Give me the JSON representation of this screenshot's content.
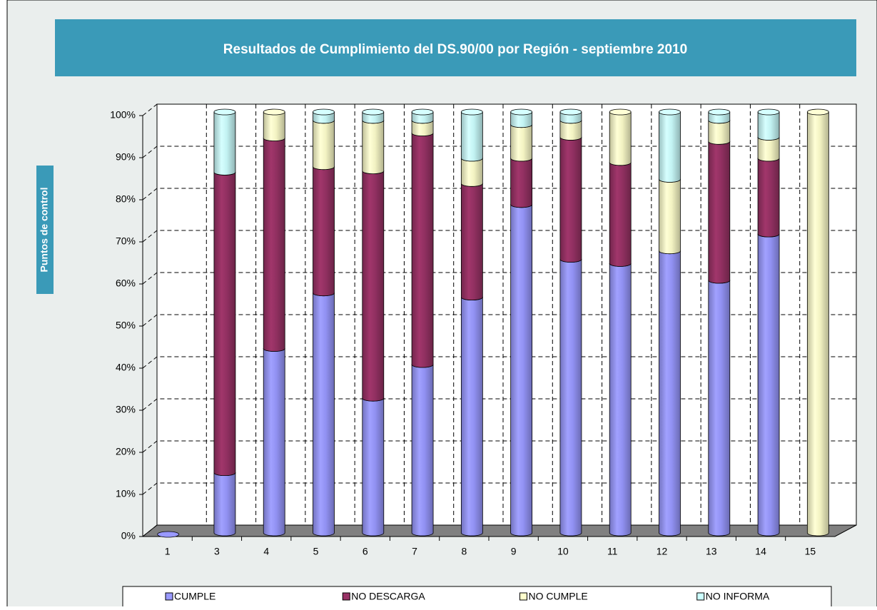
{
  "chart_data": {
    "type": "bar",
    "stacked": true,
    "three_d": true,
    "title": "Resultados de Cumplimiento del DS.90/00 por Región - septiembre 2010",
    "ylabel": "Puntos de control",
    "categories": [
      "1",
      "3",
      "4",
      "5",
      "6",
      "7",
      "8",
      "9",
      "10",
      "11",
      "12",
      "13",
      "14",
      "15"
    ],
    "series": [
      {
        "name": "CUMPLE",
        "color": "#9999ff",
        "values": [
          0,
          14.3,
          43.8,
          57,
          32,
          40,
          56,
          78,
          65,
          64,
          67,
          60,
          71,
          0
        ]
      },
      {
        "name": "NO DESCARGA",
        "color": "#993366",
        "values": [
          0,
          71.4,
          50,
          30,
          54,
          55,
          27,
          11,
          29,
          24,
          0,
          33,
          18,
          0
        ]
      },
      {
        "name": "NO CUMPLE",
        "color": "#ffffcc",
        "values": [
          0,
          0,
          6.2,
          11,
          12,
          3,
          6,
          8,
          4,
          12,
          17,
          5,
          5,
          100
        ]
      },
      {
        "name": "NO INFORMA",
        "color": "#ccffff",
        "values": [
          0,
          14.3,
          0,
          2,
          2,
          2,
          11,
          3,
          2,
          0,
          16,
          2,
          6,
          0
        ]
      }
    ],
    "ylim": [
      0,
      100
    ],
    "yticks": [
      {
        "value": 0,
        "label": "0%"
      },
      {
        "value": 10,
        "label": "10%"
      },
      {
        "value": 20,
        "label": "20%"
      },
      {
        "value": 30,
        "label": "30%"
      },
      {
        "value": 40,
        "label": "40%"
      },
      {
        "value": 50,
        "label": "50%"
      },
      {
        "value": 60,
        "label": "60%"
      },
      {
        "value": 70,
        "label": "70%"
      },
      {
        "value": 80,
        "label": "80%"
      },
      {
        "value": 90,
        "label": "90%"
      },
      {
        "value": 100,
        "label": "100%"
      }
    ],
    "grid": true,
    "legend": "bottom"
  }
}
